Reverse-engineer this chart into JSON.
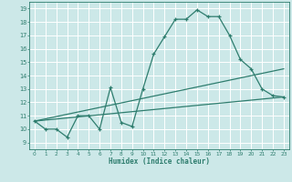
{
  "xlabel": "Humidex (Indice chaleur)",
  "bg_color": "#cce8e8",
  "grid_color": "#ffffff",
  "line_color": "#2e7d6e",
  "xlim": [
    -0.5,
    23.5
  ],
  "ylim": [
    8.5,
    19.5
  ],
  "xticks": [
    0,
    1,
    2,
    3,
    4,
    5,
    6,
    7,
    8,
    9,
    10,
    11,
    12,
    13,
    14,
    15,
    16,
    17,
    18,
    19,
    20,
    21,
    22,
    23
  ],
  "yticks": [
    9,
    10,
    11,
    12,
    13,
    14,
    15,
    16,
    17,
    18,
    19
  ],
  "main_x": [
    0,
    1,
    2,
    3,
    4,
    5,
    6,
    7,
    8,
    9,
    10,
    11,
    12,
    13,
    14,
    15,
    16,
    17,
    18,
    19,
    20,
    21,
    22,
    23
  ],
  "main_y": [
    10.6,
    10.0,
    10.0,
    9.4,
    11.0,
    11.0,
    10.0,
    13.1,
    10.5,
    10.2,
    13.0,
    15.6,
    16.9,
    18.2,
    18.2,
    18.9,
    18.4,
    18.4,
    17.0,
    15.2,
    14.5,
    13.0,
    12.5,
    12.4
  ],
  "line2_x": [
    0,
    23
  ],
  "line2_y": [
    10.6,
    12.4
  ],
  "line3_x": [
    0,
    23
  ],
  "line3_y": [
    10.6,
    14.5
  ]
}
